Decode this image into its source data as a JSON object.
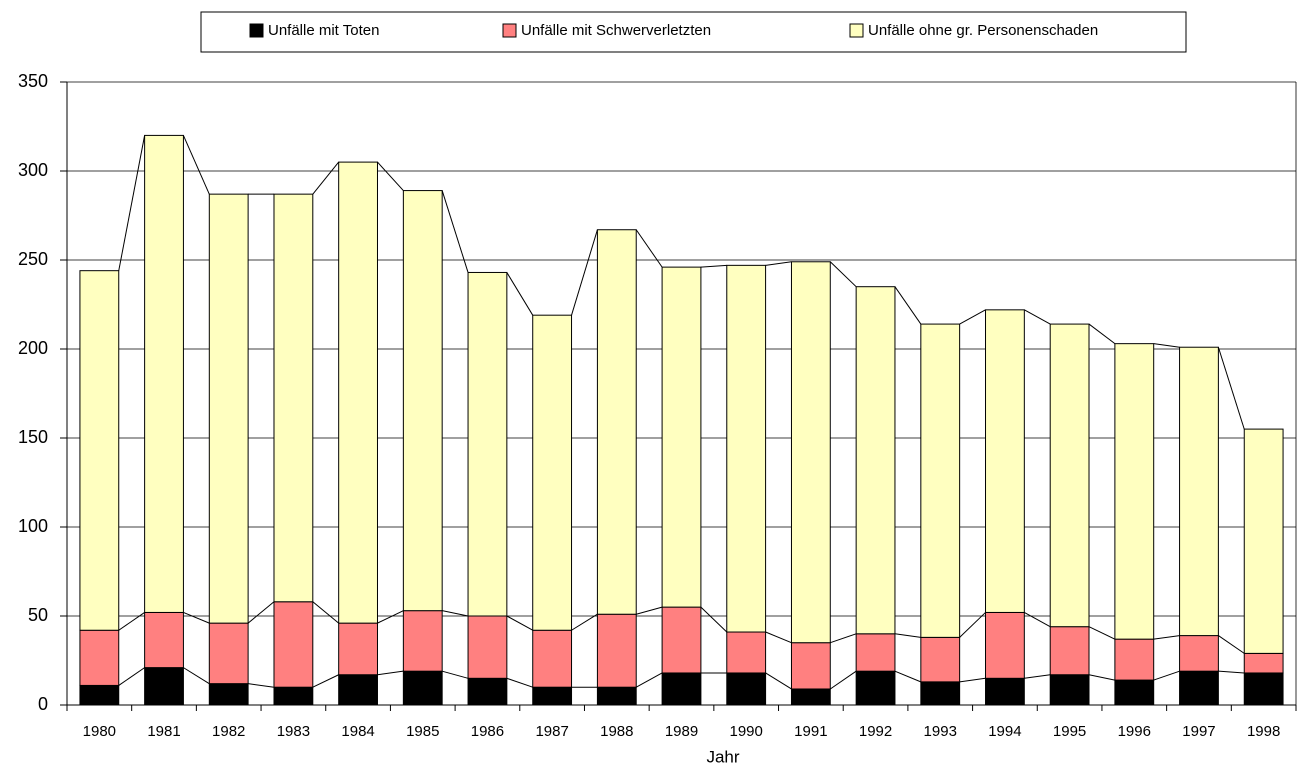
{
  "chart_data": {
    "type": "stacked-bar",
    "x_label": "Jahr",
    "categories": [
      "1980",
      "1981",
      "1982",
      "1983",
      "1984",
      "1985",
      "1986",
      "1987",
      "1988",
      "1989",
      "1990",
      "1991",
      "1992",
      "1993",
      "1994",
      "1995",
      "1996",
      "1997",
      "1998"
    ],
    "series": [
      {
        "name": "Unfälle mit Toten",
        "color": "#000000",
        "values": [
          11,
          21,
          12,
          10,
          17,
          19,
          15,
          10,
          10,
          18,
          18,
          9,
          19,
          13,
          15,
          17,
          14,
          19,
          18
        ]
      },
      {
        "name": "Unfälle mit Schwerverletzten",
        "color": "#ff8080",
        "values": [
          31,
          31,
          34,
          48,
          29,
          34,
          35,
          32,
          41,
          37,
          23,
          26,
          21,
          25,
          37,
          27,
          23,
          20,
          11
        ]
      },
      {
        "name": "Unfälle ohne gr. Personenschaden",
        "color": "#ffffc0",
        "values": [
          202,
          268,
          241,
          229,
          259,
          236,
          193,
          177,
          216,
          191,
          206,
          214,
          195,
          176,
          170,
          170,
          166,
          162,
          126
        ]
      }
    ],
    "ylim": [
      0,
      350
    ],
    "yticks": [
      0,
      50,
      100,
      150,
      200,
      250,
      300,
      350
    ],
    "grid": true,
    "legend": "top"
  }
}
